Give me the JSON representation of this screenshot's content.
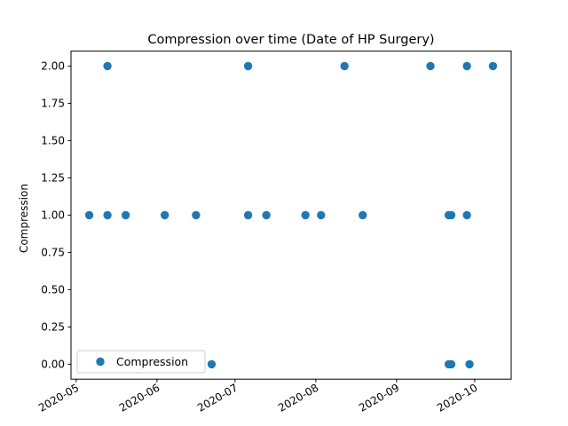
{
  "chart_data": {
    "type": "scatter",
    "title": "Compression  over time (Date of HP Surgery)",
    "xlabel": "",
    "ylabel": "Compression",
    "x_type": "date",
    "xlim": [
      "2020-04-29",
      "2020-10-15"
    ],
    "ylim": [
      -0.1,
      2.1
    ],
    "x_ticks": [
      "2020-05-01",
      "2020-06-01",
      "2020-07-01",
      "2020-08-01",
      "2020-09-01",
      "2020-10-01"
    ],
    "x_tick_labels": [
      "2020-05",
      "2020-06",
      "2020-07",
      "2020-08",
      "2020-09",
      "2020-10"
    ],
    "y_ticks": [
      0,
      0.25,
      0.5,
      0.75,
      1.0,
      1.25,
      1.5,
      1.75,
      2.0
    ],
    "y_tick_labels": [
      "0.00",
      "0.25",
      "0.50",
      "0.75",
      "1.00",
      "1.25",
      "1.50",
      "1.75",
      "2.00"
    ],
    "grid": false,
    "legend_position": "lower-left",
    "series": [
      {
        "name": "Compression",
        "color": "#1f77b4",
        "points": [
          {
            "x": "2020-05-06",
            "y": 1
          },
          {
            "x": "2020-05-13",
            "y": 1
          },
          {
            "x": "2020-05-13",
            "y": 2
          },
          {
            "x": "2020-05-20",
            "y": 1
          },
          {
            "x": "2020-06-04",
            "y": 1
          },
          {
            "x": "2020-06-16",
            "y": 1
          },
          {
            "x": "2020-06-22",
            "y": 0
          },
          {
            "x": "2020-07-06",
            "y": 1
          },
          {
            "x": "2020-07-06",
            "y": 2
          },
          {
            "x": "2020-07-13",
            "y": 1
          },
          {
            "x": "2020-07-28",
            "y": 1
          },
          {
            "x": "2020-08-03",
            "y": 1
          },
          {
            "x": "2020-08-12",
            "y": 2
          },
          {
            "x": "2020-08-19",
            "y": 1
          },
          {
            "x": "2020-09-14",
            "y": 2
          },
          {
            "x": "2020-09-21",
            "y": 1
          },
          {
            "x": "2020-09-21",
            "y": 0
          },
          {
            "x": "2020-09-22",
            "y": 1
          },
          {
            "x": "2020-09-22",
            "y": 0
          },
          {
            "x": "2020-09-28",
            "y": 1
          },
          {
            "x": "2020-09-28",
            "y": 2
          },
          {
            "x": "2020-09-29",
            "y": 0
          },
          {
            "x": "2020-10-08",
            "y": 2
          }
        ]
      }
    ]
  }
}
